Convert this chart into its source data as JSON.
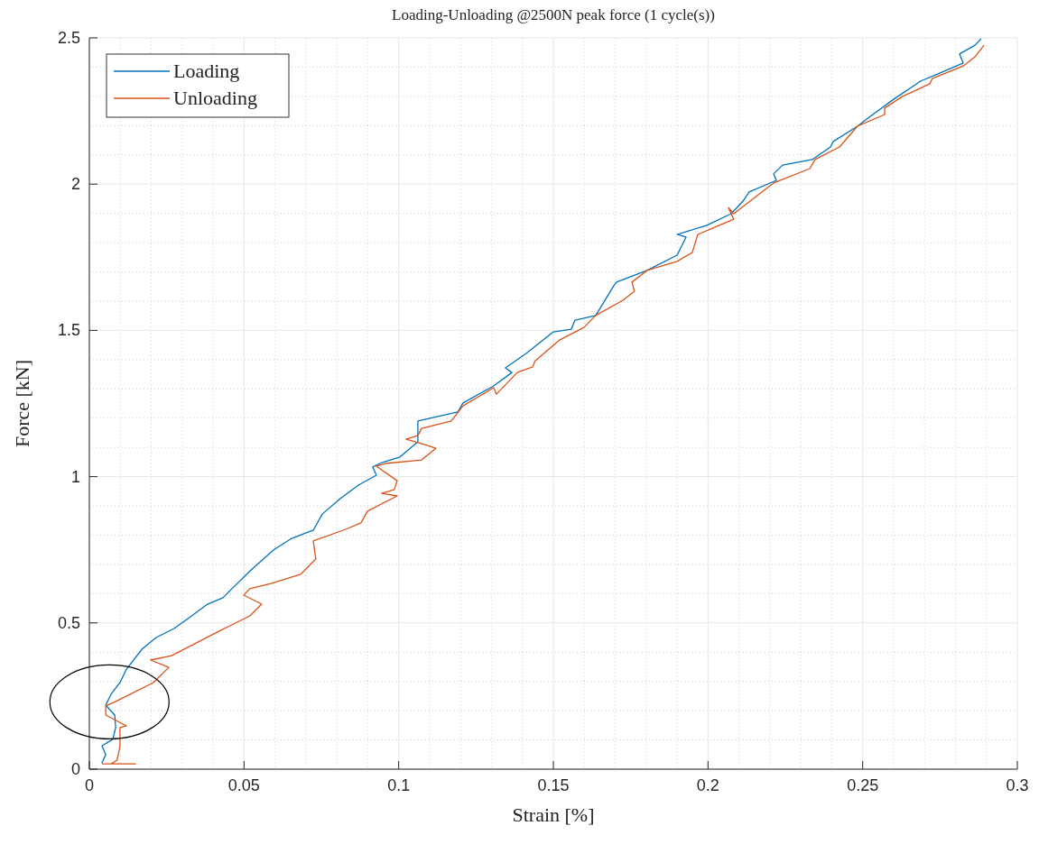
{
  "chart_data": {
    "type": "line",
    "title": "Loading-Unloading @2500N peak force (1 cycle(s))",
    "xlabel": "Strain [%]",
    "ylabel": "Force [kN]",
    "xlim": [
      0,
      0.3
    ],
    "xticks": [
      0,
      0.05,
      0.1,
      0.15,
      0.2,
      0.25,
      0.3
    ],
    "ylim": [
      0,
      2.5
    ],
    "yticks": [
      0,
      0.5,
      1,
      1.5,
      2,
      2.5
    ],
    "grid": true,
    "legend": "top left",
    "line_style": "solid",
    "marker": "none",
    "series": [
      {
        "name": "Loading",
        "color": "#0072bd",
        "x": [
          0.004,
          0.0053,
          0.0041,
          0.0076,
          0.0085,
          0.0082,
          0.0053,
          0.007,
          0.0099,
          0.012,
          0.017,
          0.0216,
          0.0274,
          0.0315,
          0.0382,
          0.0432,
          0.0461,
          0.052,
          0.0595,
          0.0654,
          0.0724,
          0.0753,
          0.0811,
          0.087,
          0.0928,
          0.0916,
          0.0945,
          0.1004,
          0.1062,
          0.1062,
          0.1191,
          0.1208,
          0.1307,
          0.1366,
          0.1345,
          0.1412,
          0.15,
          0.1558,
          0.157,
          0.1637,
          0.1695,
          0.1704,
          0.1803,
          0.19,
          0.1929,
          0.19,
          0.1996,
          0.2075,
          0.2113,
          0.2133,
          0.2221,
          0.2212,
          0.2241,
          0.2337,
          0.2396,
          0.2404,
          0.2483,
          0.2521,
          0.26,
          0.2687,
          0.2737,
          0.2825,
          0.2813,
          0.2863,
          0.2883
        ],
        "values": [
          0.02,
          0.049,
          0.08,
          0.102,
          0.142,
          0.185,
          0.219,
          0.256,
          0.296,
          0.342,
          0.41,
          0.45,
          0.481,
          0.512,
          0.564,
          0.586,
          0.617,
          0.678,
          0.749,
          0.789,
          0.817,
          0.872,
          0.925,
          0.971,
          1.005,
          1.033,
          1.048,
          1.067,
          1.119,
          1.19,
          1.221,
          1.252,
          1.31,
          1.356,
          1.372,
          1.421,
          1.495,
          1.504,
          1.535,
          1.551,
          1.652,
          1.665,
          1.705,
          1.757,
          1.819,
          1.828,
          1.859,
          1.899,
          1.942,
          1.973,
          2.013,
          2.035,
          2.065,
          2.084,
          2.127,
          2.145,
          2.198,
          2.229,
          2.29,
          2.352,
          2.374,
          2.414,
          2.445,
          2.475,
          2.497
        ]
      },
      {
        "name": "Unloading",
        "color": "#d95319",
        "x": [
          0.2892,
          0.2863,
          0.2825,
          0.2725,
          0.2717,
          0.2629,
          0.2571,
          0.2571,
          0.2483,
          0.2425,
          0.2346,
          0.2329,
          0.2212,
          0.2083,
          0.2066,
          0.2083,
          0.1967,
          0.1949,
          0.19,
          0.1803,
          0.1754,
          0.1762,
          0.1725,
          0.1637,
          0.1599,
          0.152,
          0.15,
          0.1441,
          0.1433,
          0.1383,
          0.1316,
          0.1307,
          0.1208,
          0.117,
          0.1074,
          0.1062,
          0.1024,
          0.1083,
          0.112,
          0.1074,
          0.0957,
          0.0928,
          0.0995,
          0.0986,
          0.0945,
          0.0995,
          0.0899,
          0.0878,
          0.0829,
          0.0724,
          0.0732,
          0.0683,
          0.0587,
          0.0519,
          0.0499,
          0.0557,
          0.0519,
          0.042,
          0.0266,
          0.0198,
          0.0257,
          0.0207,
          0.009,
          0.0053,
          0.0053,
          0.012,
          0.0099,
          0.0099,
          0.009,
          0.007,
          0.0149,
          0.0041
        ],
        "values": [
          2.475,
          2.435,
          2.404,
          2.361,
          2.343,
          2.3,
          2.26,
          2.238,
          2.198,
          2.127,
          2.084,
          2.053,
          2.004,
          1.899,
          1.92,
          1.88,
          1.828,
          1.766,
          1.736,
          1.705,
          1.665,
          1.634,
          1.603,
          1.551,
          1.51,
          1.467,
          1.449,
          1.396,
          1.375,
          1.356,
          1.282,
          1.304,
          1.242,
          1.19,
          1.165,
          1.141,
          1.128,
          1.11,
          1.097,
          1.057,
          1.045,
          1.036,
          0.986,
          0.956,
          0.943,
          0.934,
          0.882,
          0.842,
          0.82,
          0.78,
          0.718,
          0.666,
          0.635,
          0.617,
          0.595,
          0.564,
          0.524,
          0.472,
          0.388,
          0.373,
          0.348,
          0.296,
          0.234,
          0.216,
          0.185,
          0.148,
          0.142,
          0.08,
          0.031,
          0.018,
          0.018,
          0.018
        ]
      }
    ]
  }
}
